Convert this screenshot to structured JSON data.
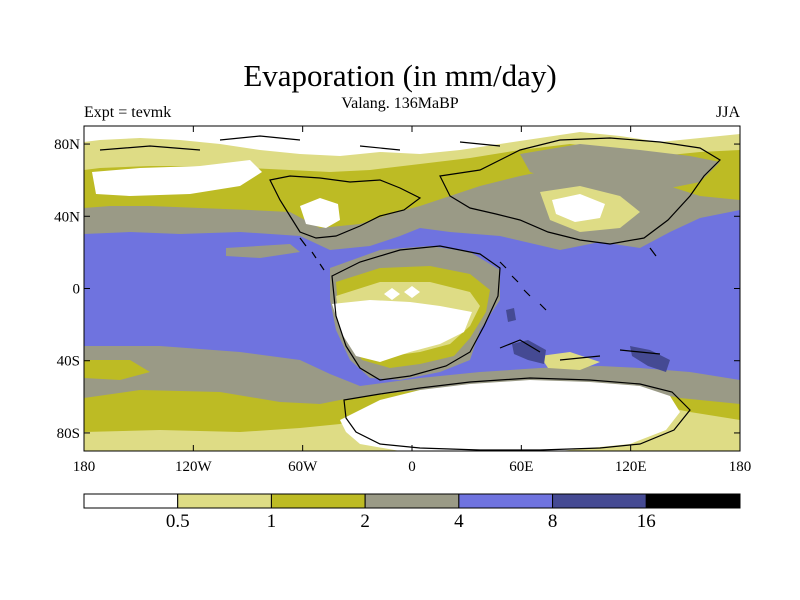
{
  "title": "Evaporation (in mm/day)",
  "subtitle": "Valang. 136MaBP",
  "left_label": "Expt = tevmk",
  "right_label": "JJA",
  "map": {
    "x_ticks": [
      "180",
      "120W",
      "60W",
      "0",
      "60E",
      "120E",
      "180"
    ],
    "y_ticks": [
      "80N",
      "40N",
      "0",
      "40S",
      "80S"
    ],
    "colors": {
      "white": "#ffffff",
      "light_olive": "#dedc85",
      "olive": "#bdbb24",
      "gray": "#9a9a86",
      "blue": "#6f73df",
      "dark_blue": "#454a93",
      "black": "#000000"
    }
  },
  "colorbar": {
    "labels": [
      "0.5",
      "1",
      "2",
      "4",
      "8",
      "16"
    ],
    "colors": [
      "#ffffff",
      "#dedc85",
      "#bdbb24",
      "#9a9a86",
      "#6f73df",
      "#454a93",
      "#000000"
    ]
  }
}
